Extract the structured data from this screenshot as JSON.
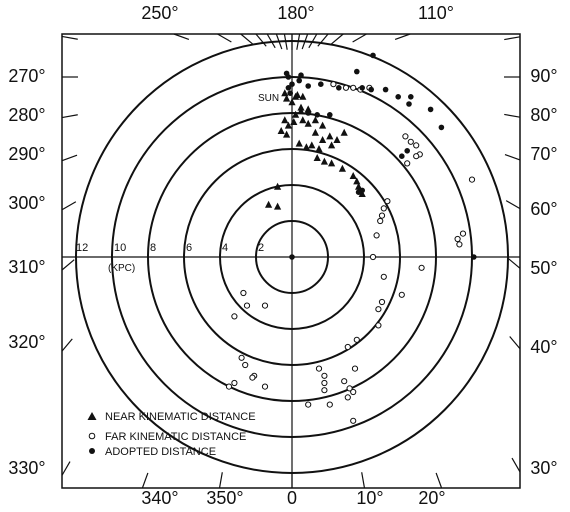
{
  "chart_data": {
    "type": "scatter",
    "title": "",
    "units_label": "(KPC)",
    "radius_ticks": [
      "12",
      "10",
      "8",
      "6",
      "4",
      "2"
    ],
    "circle_radii_kpc": [
      2,
      4,
      6,
      8,
      10,
      12
    ],
    "top_labels": [
      "250°",
      "180°",
      "110°"
    ],
    "left_labels": [
      "270°",
      "280°",
      "290°",
      "300°",
      "310°",
      "320°",
      "330°"
    ],
    "right_labels": [
      "90°",
      "80°",
      "70°",
      "60°",
      "50°",
      "40°",
      "30°"
    ],
    "bottom_labels": [
      "340°",
      "350°",
      "0",
      "10°",
      "20°"
    ],
    "sun_label": "SUN",
    "sun_position_kpc": {
      "x": 0,
      "y": 10
    },
    "x_range_kpc": [
      -12,
      12
    ],
    "y_range_kpc": [
      -12,
      12
    ],
    "legend_placement": "bottom-left",
    "legend": [
      {
        "marker": "triangle",
        "label": "NEAR KINEMATIC DISTANCE"
      },
      {
        "marker": "open-circle",
        "label": "FAR KINEMATIC DISTANCE"
      },
      {
        "marker": "filled-circle",
        "label": "ADOPTED DISTANCE"
      }
    ],
    "series": [
      {
        "marker": "triangle",
        "points": [
          [
            -0.4,
            9.1
          ],
          [
            -0.3,
            8.8
          ],
          [
            0.0,
            8.6
          ],
          [
            0.3,
            9.0
          ],
          [
            0.6,
            8.9
          ],
          [
            0.2,
            7.9
          ],
          [
            0.5,
            8.1
          ],
          [
            0.9,
            8.2
          ],
          [
            -0.4,
            7.6
          ],
          [
            -0.2,
            7.3
          ],
          [
            0.1,
            7.5
          ],
          [
            -0.6,
            7.0
          ],
          [
            -0.3,
            6.8
          ],
          [
            0.6,
            7.6
          ],
          [
            0.9,
            7.4
          ],
          [
            1.3,
            7.6
          ],
          [
            1.7,
            7.3
          ],
          [
            2.1,
            6.7
          ],
          [
            2.5,
            6.5
          ],
          [
            1.3,
            6.9
          ],
          [
            1.7,
            6.5
          ],
          [
            1.1,
            6.2
          ],
          [
            1.5,
            6.0
          ],
          [
            0.4,
            6.3
          ],
          [
            0.8,
            6.1
          ],
          [
            1.4,
            5.5
          ],
          [
            1.8,
            5.3
          ],
          [
            2.2,
            5.2
          ],
          [
            2.8,
            4.9
          ],
          [
            3.4,
            4.5
          ],
          [
            3.6,
            4.2
          ],
          [
            3.7,
            3.9
          ],
          [
            3.9,
            3.5
          ],
          [
            -0.8,
            3.9
          ],
          [
            -1.3,
            2.9
          ],
          [
            -0.8,
            2.8
          ],
          [
            2.2,
            6.2
          ],
          [
            2.9,
            6.9
          ],
          [
            0.2,
            8.9
          ],
          [
            0.5,
            8.3
          ]
        ]
      },
      {
        "marker": "open-circle",
        "points": [
          [
            2.3,
            9.6
          ],
          [
            3.0,
            9.4
          ],
          [
            3.4,
            9.4
          ],
          [
            4.3,
            9.4
          ],
          [
            3.8,
            9.3
          ],
          [
            6.3,
            6.7
          ],
          [
            6.6,
            6.4
          ],
          [
            6.9,
            6.2
          ],
          [
            7.1,
            5.7
          ],
          [
            6.9,
            5.6
          ],
          [
            6.4,
            5.2
          ],
          [
            5.3,
            3.1
          ],
          [
            5.1,
            2.7
          ],
          [
            5.0,
            2.3
          ],
          [
            4.9,
            2.0
          ],
          [
            4.7,
            1.2
          ],
          [
            9.2,
            1.0
          ],
          [
            9.3,
            0.7
          ],
          [
            4.5,
            0.0
          ],
          [
            7.2,
            -0.6
          ],
          [
            5.1,
            -1.1
          ],
          [
            6.1,
            -2.1
          ],
          [
            5.0,
            -2.5
          ],
          [
            4.8,
            -2.9
          ],
          [
            4.8,
            -3.8
          ],
          [
            3.6,
            -4.6
          ],
          [
            3.1,
            -5.0
          ],
          [
            3.5,
            -6.2
          ],
          [
            2.9,
            -6.9
          ],
          [
            -2.7,
            -2.0
          ],
          [
            -2.5,
            -2.7
          ],
          [
            -1.5,
            -2.7
          ],
          [
            -3.2,
            -3.3
          ],
          [
            -2.8,
            -5.6
          ],
          [
            -2.6,
            -6.0
          ],
          [
            -2.1,
            -6.6
          ],
          [
            -3.2,
            -7.0
          ],
          [
            -3.5,
            -7.2
          ],
          [
            1.5,
            -6.2
          ],
          [
            1.8,
            -6.6
          ],
          [
            3.2,
            -7.3
          ],
          [
            1.8,
            -7.4
          ],
          [
            3.4,
            -7.5
          ],
          [
            3.1,
            -7.8
          ],
          [
            0.9,
            -8.2
          ],
          [
            2.1,
            -8.2
          ],
          [
            -1.5,
            -7.2
          ],
          [
            -2.2,
            -6.7
          ],
          [
            3.4,
            -9.1
          ],
          [
            10.0,
            4.3
          ],
          [
            9.5,
            1.3
          ],
          [
            1.8,
            -7.0
          ]
        ]
      },
      {
        "marker": "filled-circle",
        "points": [
          [
            -0.3,
            10.2
          ],
          [
            -0.2,
            10.0
          ],
          [
            0.0,
            9.6
          ],
          [
            0.4,
            9.8
          ],
          [
            0.9,
            9.5
          ],
          [
            1.6,
            9.6
          ],
          [
            2.6,
            9.4
          ],
          [
            3.9,
            9.4
          ],
          [
            4.4,
            9.3
          ],
          [
            5.2,
            9.3
          ],
          [
            5.9,
            8.9
          ],
          [
            6.6,
            8.9
          ],
          [
            6.5,
            8.5
          ],
          [
            7.7,
            8.2
          ],
          [
            8.3,
            7.2
          ],
          [
            6.4,
            5.9
          ],
          [
            6.1,
            5.6
          ],
          [
            3.9,
            3.7
          ],
          [
            3.7,
            3.6
          ],
          [
            -0.2,
            9.4
          ],
          [
            -0.1,
            9.1
          ],
          [
            0.9,
            8.0
          ],
          [
            1.4,
            7.9
          ],
          [
            2.1,
            7.9
          ],
          [
            3.6,
            10.3
          ],
          [
            4.5,
            11.2
          ],
          [
            0.5,
            10.1
          ],
          [
            10.1,
            0.0
          ],
          [
            0.0,
            0.0
          ]
        ]
      }
    ]
  }
}
